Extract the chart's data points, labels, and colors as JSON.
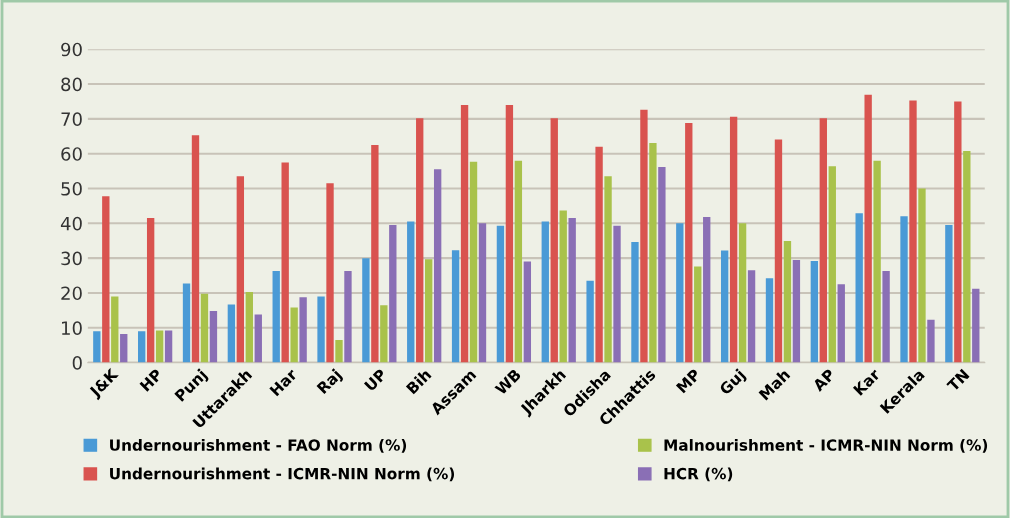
{
  "chart_data": {
    "type": "bar",
    "categories": [
      "J&K",
      "HP",
      "Punj",
      "Uttarakh",
      "Har",
      "Raj",
      "UP",
      "Bih",
      "Assam",
      "WB",
      "Jharkh",
      "Odisha",
      "Chhattis",
      "MP",
      "Guj",
      "Mah",
      "AP",
      "Kar",
      "Kerala",
      "TN"
    ],
    "series": [
      {
        "name": "Undernourishment - FAO Norm (%)",
        "color": "#4a9ad6",
        "values": [
          9,
          9,
          22.7,
          16.7,
          26.3,
          19,
          30,
          40.5,
          32.3,
          39.3,
          40.5,
          23.5,
          34.6,
          40,
          32.2,
          24.2,
          29.2,
          42.9,
          42,
          39.5
        ]
      },
      {
        "name": "Undernourishment - ICMR-NIN Norm (%)",
        "color": "#d9534f",
        "values": [
          47.8,
          41.5,
          65.3,
          53.5,
          57.5,
          51.5,
          62.5,
          70.2,
          74,
          74,
          70.2,
          62,
          72.6,
          68.8,
          70.6,
          64.1,
          70.2,
          76.9,
          75.3,
          75
        ]
      },
      {
        "name": "Malnourishment - ICMR-NIN Norm (%)",
        "color": "#a9c24b",
        "values": [
          19,
          9.2,
          19.8,
          20.3,
          15.8,
          6.5,
          16.5,
          29.7,
          57.7,
          58,
          43.7,
          53.5,
          63.1,
          27.6,
          40,
          34.9,
          56.4,
          58,
          50,
          60.8
        ]
      },
      {
        "name": "HCR (%)",
        "color": "#8a6fb5",
        "values": [
          8.2,
          9.2,
          14.8,
          13.8,
          18.8,
          26.3,
          39.5,
          55.5,
          40,
          29,
          41.5,
          39.3,
          56.2,
          41.8,
          26.5,
          29.5,
          22.5,
          26.3,
          12.3,
          21.2
        ]
      }
    ],
    "ylim": [
      0,
      90
    ],
    "yticks": [
      0,
      10,
      20,
      30,
      40,
      50,
      60,
      70,
      80,
      90
    ],
    "grid": "y",
    "legend": "bottom"
  }
}
